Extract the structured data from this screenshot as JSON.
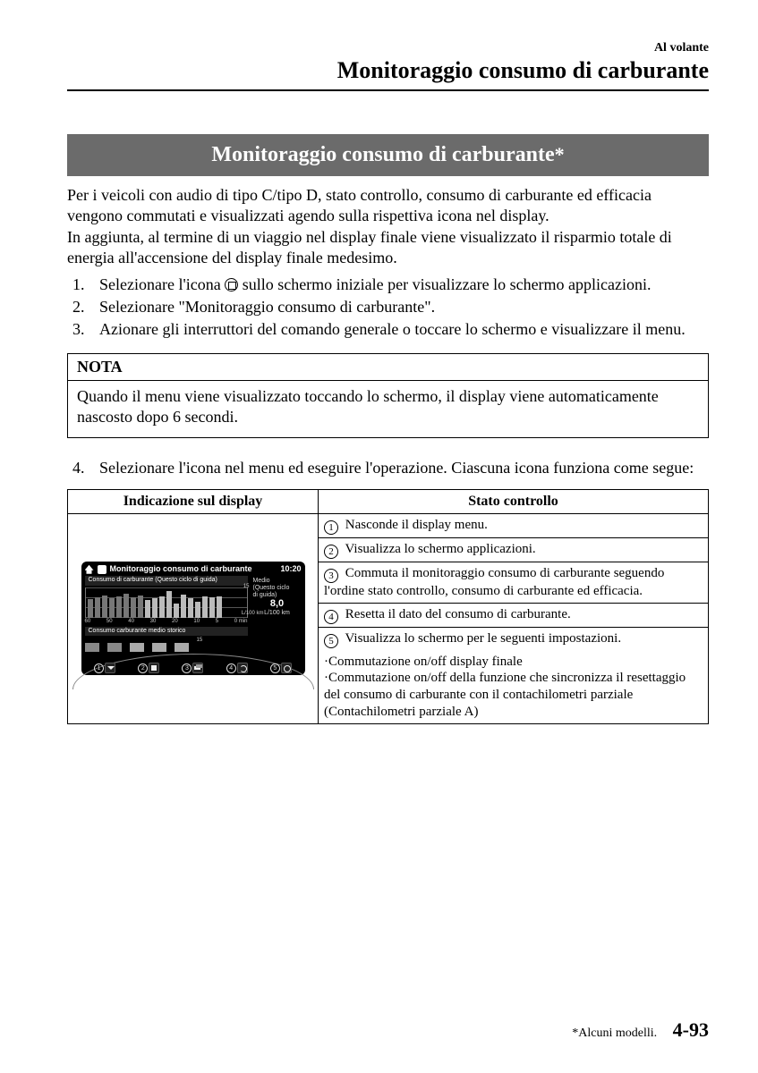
{
  "header": {
    "small": "Al volante",
    "big": "Monitoraggio consumo di carburante"
  },
  "banner": {
    "text": "Monitoraggio consumo di carburante",
    "asterisk": "*"
  },
  "para1": "Per i veicoli con audio di tipo C/tipo D, stato controllo, consumo di carburante ed efficacia vengono commutati e visualizzati agendo sulla rispettiva icona nel display.",
  "para2": "In aggiunta, al termine di un viaggio nel display finale viene visualizzato il risparmio totale di energia all'accensione del display finale medesimo.",
  "steps123": {
    "s1a": "Selezionare l'icona ",
    "s1b": " sullo schermo iniziale per visualizzare lo schermo applicazioni.",
    "s2": "Selezionare \"Monitoraggio consumo di carburante\".",
    "s3": "Azionare gli interruttori del comando generale o toccare lo schermo e visualizzare il menu."
  },
  "nota": {
    "title": "NOTA",
    "body": "Quando il menu viene visualizzato toccando lo schermo, il display viene automaticamente nascosto dopo 6 secondi."
  },
  "step4": "Selezionare l'icona nel menu ed eseguire l'operazione. Ciascuna icona funziona come segue:",
  "table": {
    "head_left": "Indicazione sul display",
    "head_right": "Stato controllo",
    "rows": {
      "r1": "Nasconde il display menu.",
      "r2": "Visualizza lo schermo applicazioni.",
      "r3": "Commuta il monitoraggio consumo di carburante seguendo l'ordine stato controllo, consumo di carburante ed efficacia.",
      "r4": "Resetta il dato del consumo di carburante.",
      "r5": "Visualizza lo schermo per le seguenti impostazioni.",
      "r5b1": "·Commutazione on/off display finale",
      "r5b2": "·Commutazione on/off della funzione che sincronizza il resettaggio del consumo di carburante con il contachilometri parziale (Contachilometri parziale A)"
    }
  },
  "display": {
    "title": "Monitoraggio consumo di carburante",
    "clock": "10:20",
    "sub1": "Consumo di carburante (Questo ciclo di guida)",
    "y_hi": "15",
    "y_unit": "L/100 km",
    "y_lo": "0",
    "xaxis": [
      "60",
      "50",
      "40",
      "30",
      "20",
      "10",
      "5",
      "0 min"
    ],
    "side_l1": "Medio",
    "side_l2": "(Questo ciclo",
    "side_l3": "di guida)",
    "avg_val": "8,0",
    "avg_unit": "L/100 km",
    "sub2": "Consumo carburante medio storico",
    "hist_y": "15",
    "bars_top": [
      21,
      23,
      25,
      22,
      24,
      27,
      23,
      25,
      20,
      22,
      24,
      30,
      16,
      26,
      22,
      18,
      24,
      23,
      24
    ],
    "bars_mask": [
      0,
      0,
      0,
      0,
      0,
      0,
      0,
      0,
      1,
      1,
      1,
      1,
      1,
      1,
      1,
      1,
      1,
      1,
      1
    ],
    "buttons": [
      "1",
      "2",
      "3",
      "4",
      "5"
    ]
  },
  "footer": {
    "note": "*Alcuni modelli.",
    "page": "4-93"
  },
  "colors": {
    "banner_bg": "#6b6b6b"
  }
}
